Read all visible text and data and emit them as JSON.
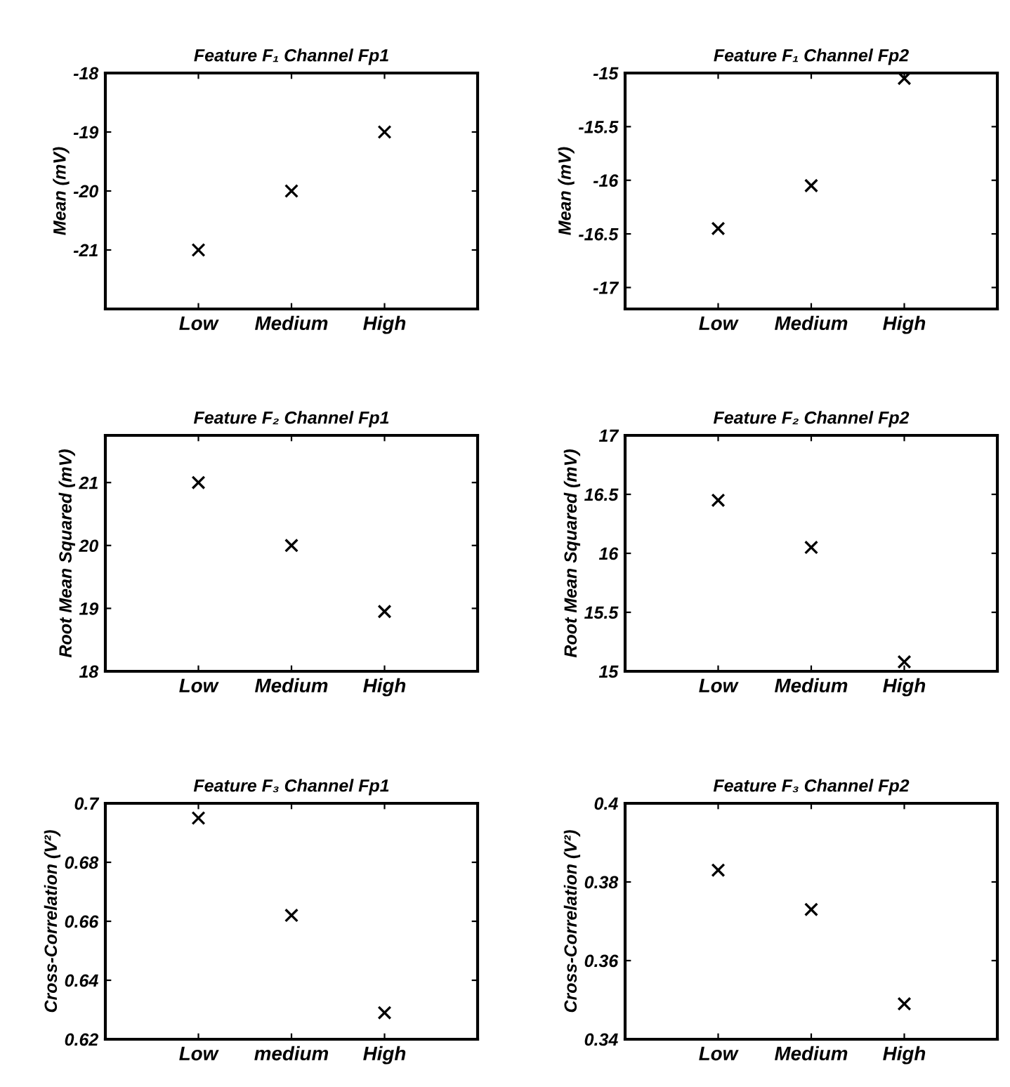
{
  "chart_data": [
    {
      "type": "scatter",
      "title": "Feature F₁ Channel Fp1",
      "ylabel": "Mean (mV)",
      "categories": [
        "Low",
        "Medium",
        "High"
      ],
      "values": [
        -21,
        -20,
        -19
      ],
      "color": "#000000",
      "marker": "cross",
      "ylim": [
        -22,
        -18
      ],
      "yticks": [
        -21,
        -20,
        -19,
        -18
      ]
    },
    {
      "type": "scatter",
      "title": "Feature F₁ Channel Fp2",
      "ylabel": "Mean (mV)",
      "categories": [
        "Low",
        "Medium",
        "High"
      ],
      "values": [
        -16.45,
        -16.05,
        -15.05
      ],
      "color": "#000000",
      "marker": "cross",
      "ylim": [
        -17.2,
        -15
      ],
      "yticks": [
        -17,
        -16.5,
        -16,
        -15.5,
        -15
      ]
    },
    {
      "type": "scatter",
      "title": "Feature F₂ Channel Fp1",
      "ylabel": "Root Mean Squared (mV)",
      "categories": [
        "Low",
        "Medium",
        "High"
      ],
      "values": [
        21,
        20,
        18.95
      ],
      "color": "#000000",
      "marker": "cross",
      "ylim": [
        18,
        21.75
      ],
      "yticks": [
        18,
        19,
        20,
        21
      ]
    },
    {
      "type": "scatter",
      "title": "Feature F₂ Channel Fp2",
      "ylabel": "Root Mean Squared (mV)",
      "categories": [
        "Low",
        "Medium",
        "High"
      ],
      "values": [
        16.45,
        16.05,
        15.08
      ],
      "color": "#000000",
      "marker": "cross",
      "ylim": [
        15,
        17
      ],
      "yticks": [
        15,
        15.5,
        16,
        16.5,
        17
      ]
    },
    {
      "type": "scatter",
      "title": "Feature F₃ Channel Fp1",
      "ylabel": "Cross-Correlation (V²)",
      "categories": [
        "Low",
        "medium",
        "High"
      ],
      "values": [
        0.695,
        0.662,
        0.629
      ],
      "color": "#000000",
      "marker": "cross",
      "ylim": [
        0.62,
        0.7
      ],
      "yticks": [
        0.62,
        0.64,
        0.66,
        0.68,
        0.7
      ]
    },
    {
      "type": "scatter",
      "title": "Feature F₃ Channel Fp2",
      "ylabel": "Cross-Correlation (V²)",
      "categories": [
        "Low",
        "Medium",
        "High"
      ],
      "values": [
        0.383,
        0.373,
        0.349
      ],
      "color": "#000000",
      "marker": "cross",
      "ylim": [
        0.34,
        0.4
      ],
      "yticks": [
        0.34,
        0.36,
        0.38,
        0.4
      ]
    }
  ]
}
